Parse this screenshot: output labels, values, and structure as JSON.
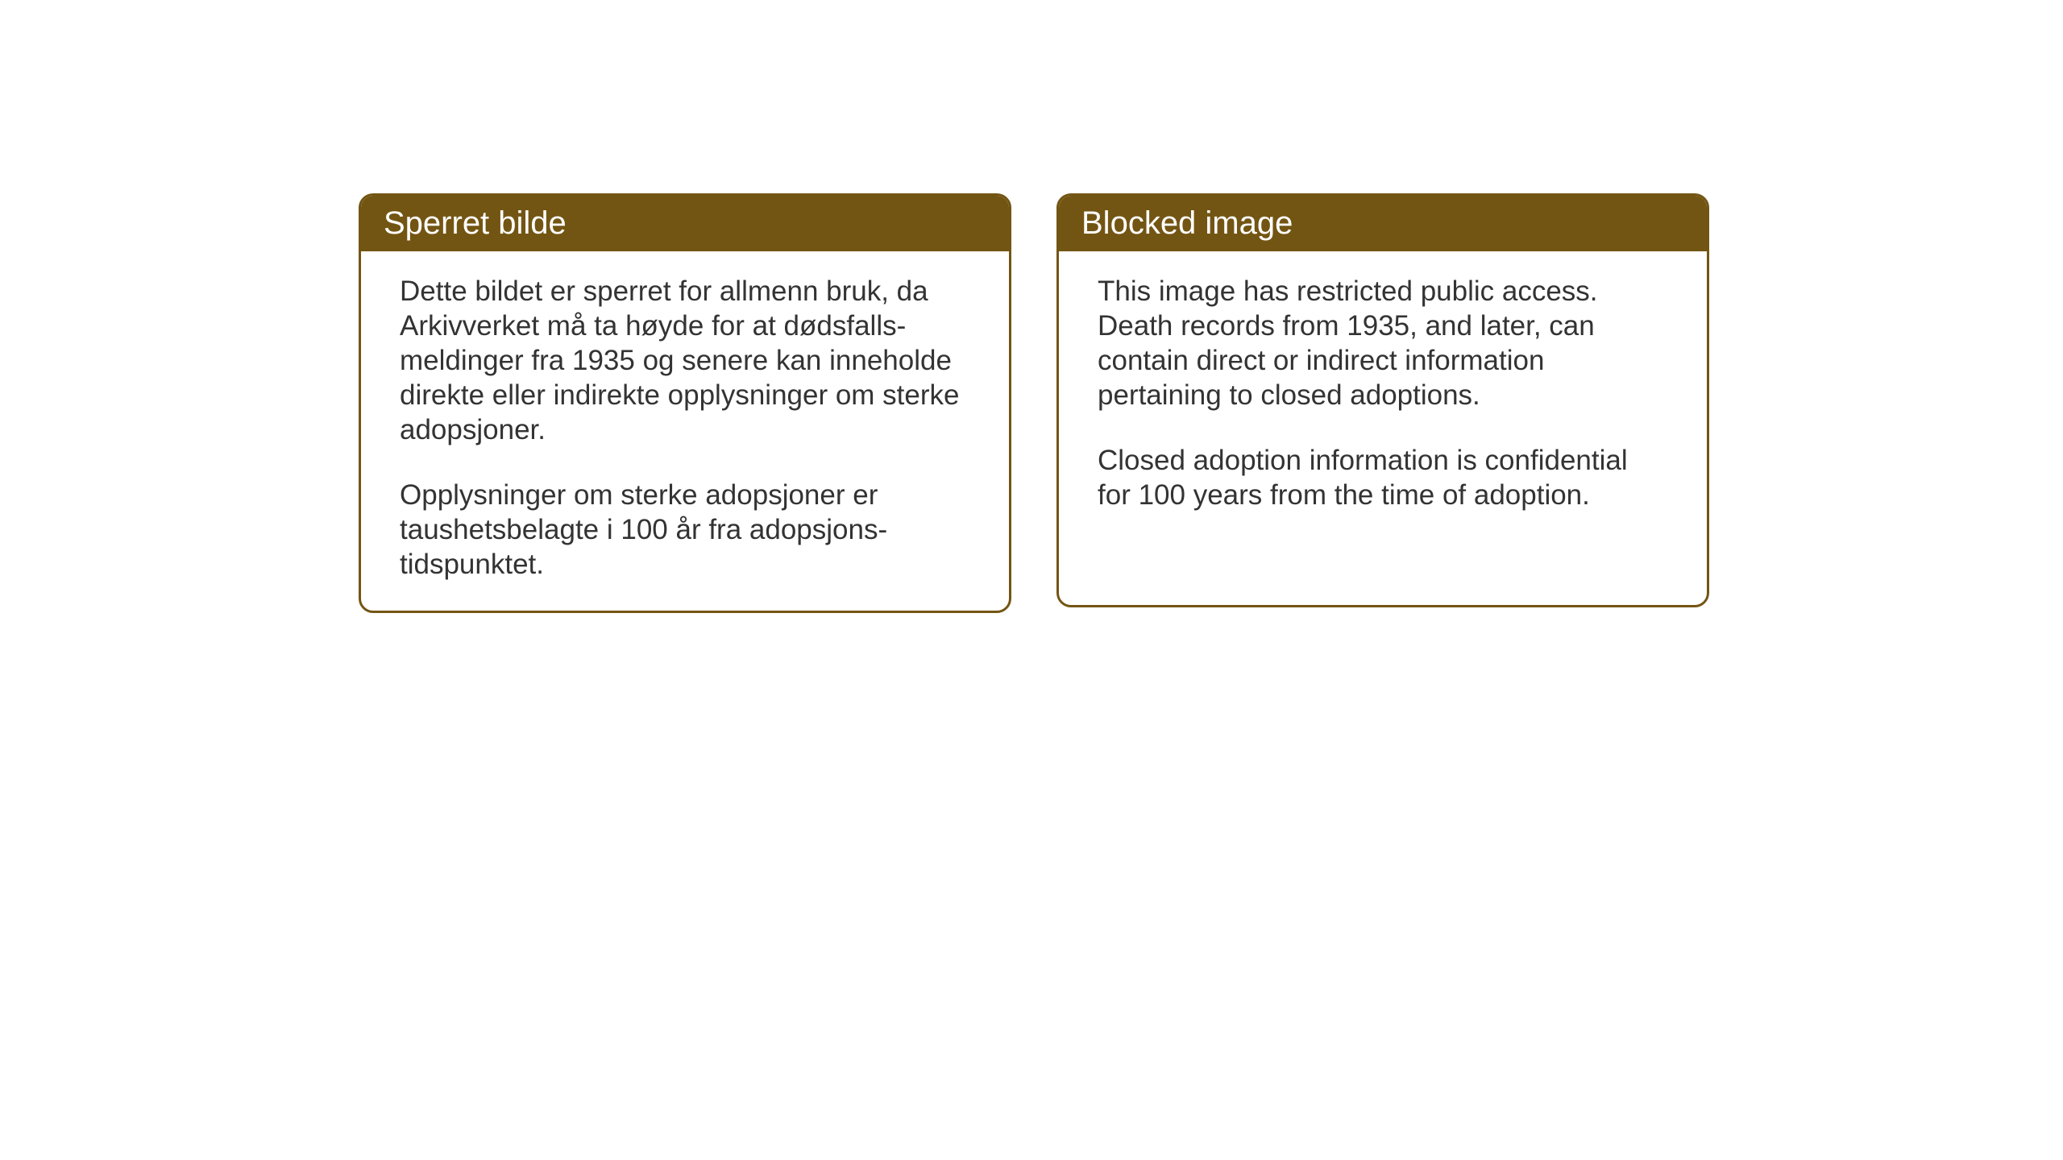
{
  "cards": [
    {
      "title": "Sperret bilde",
      "paragraph1": "Dette bildet er sperret for allmenn bruk, da Arkivverket må ta høyde for at dødsfalls-meldinger fra 1935 og senere kan inneholde direkte eller indirekte opplysninger om sterke adopsjoner.",
      "paragraph2": "Opplysninger om sterke adopsjoner er taushetsbelagte i 100 år fra adopsjons-tidspunktet."
    },
    {
      "title": "Blocked image",
      "paragraph1": "This image has restricted public access. Death records from 1935, and later, can contain direct or indirect information pertaining to closed adoptions.",
      "paragraph2": "Closed adoption information is confidential for 100 years from the time of adoption."
    }
  ],
  "styling": {
    "header_background": "#735513",
    "header_text_color": "#ffffff",
    "border_color": "#735513",
    "body_text_color": "#333333",
    "page_background": "#ffffff",
    "title_fontsize": 40,
    "body_fontsize": 35,
    "border_radius": 18,
    "border_width": 3
  }
}
